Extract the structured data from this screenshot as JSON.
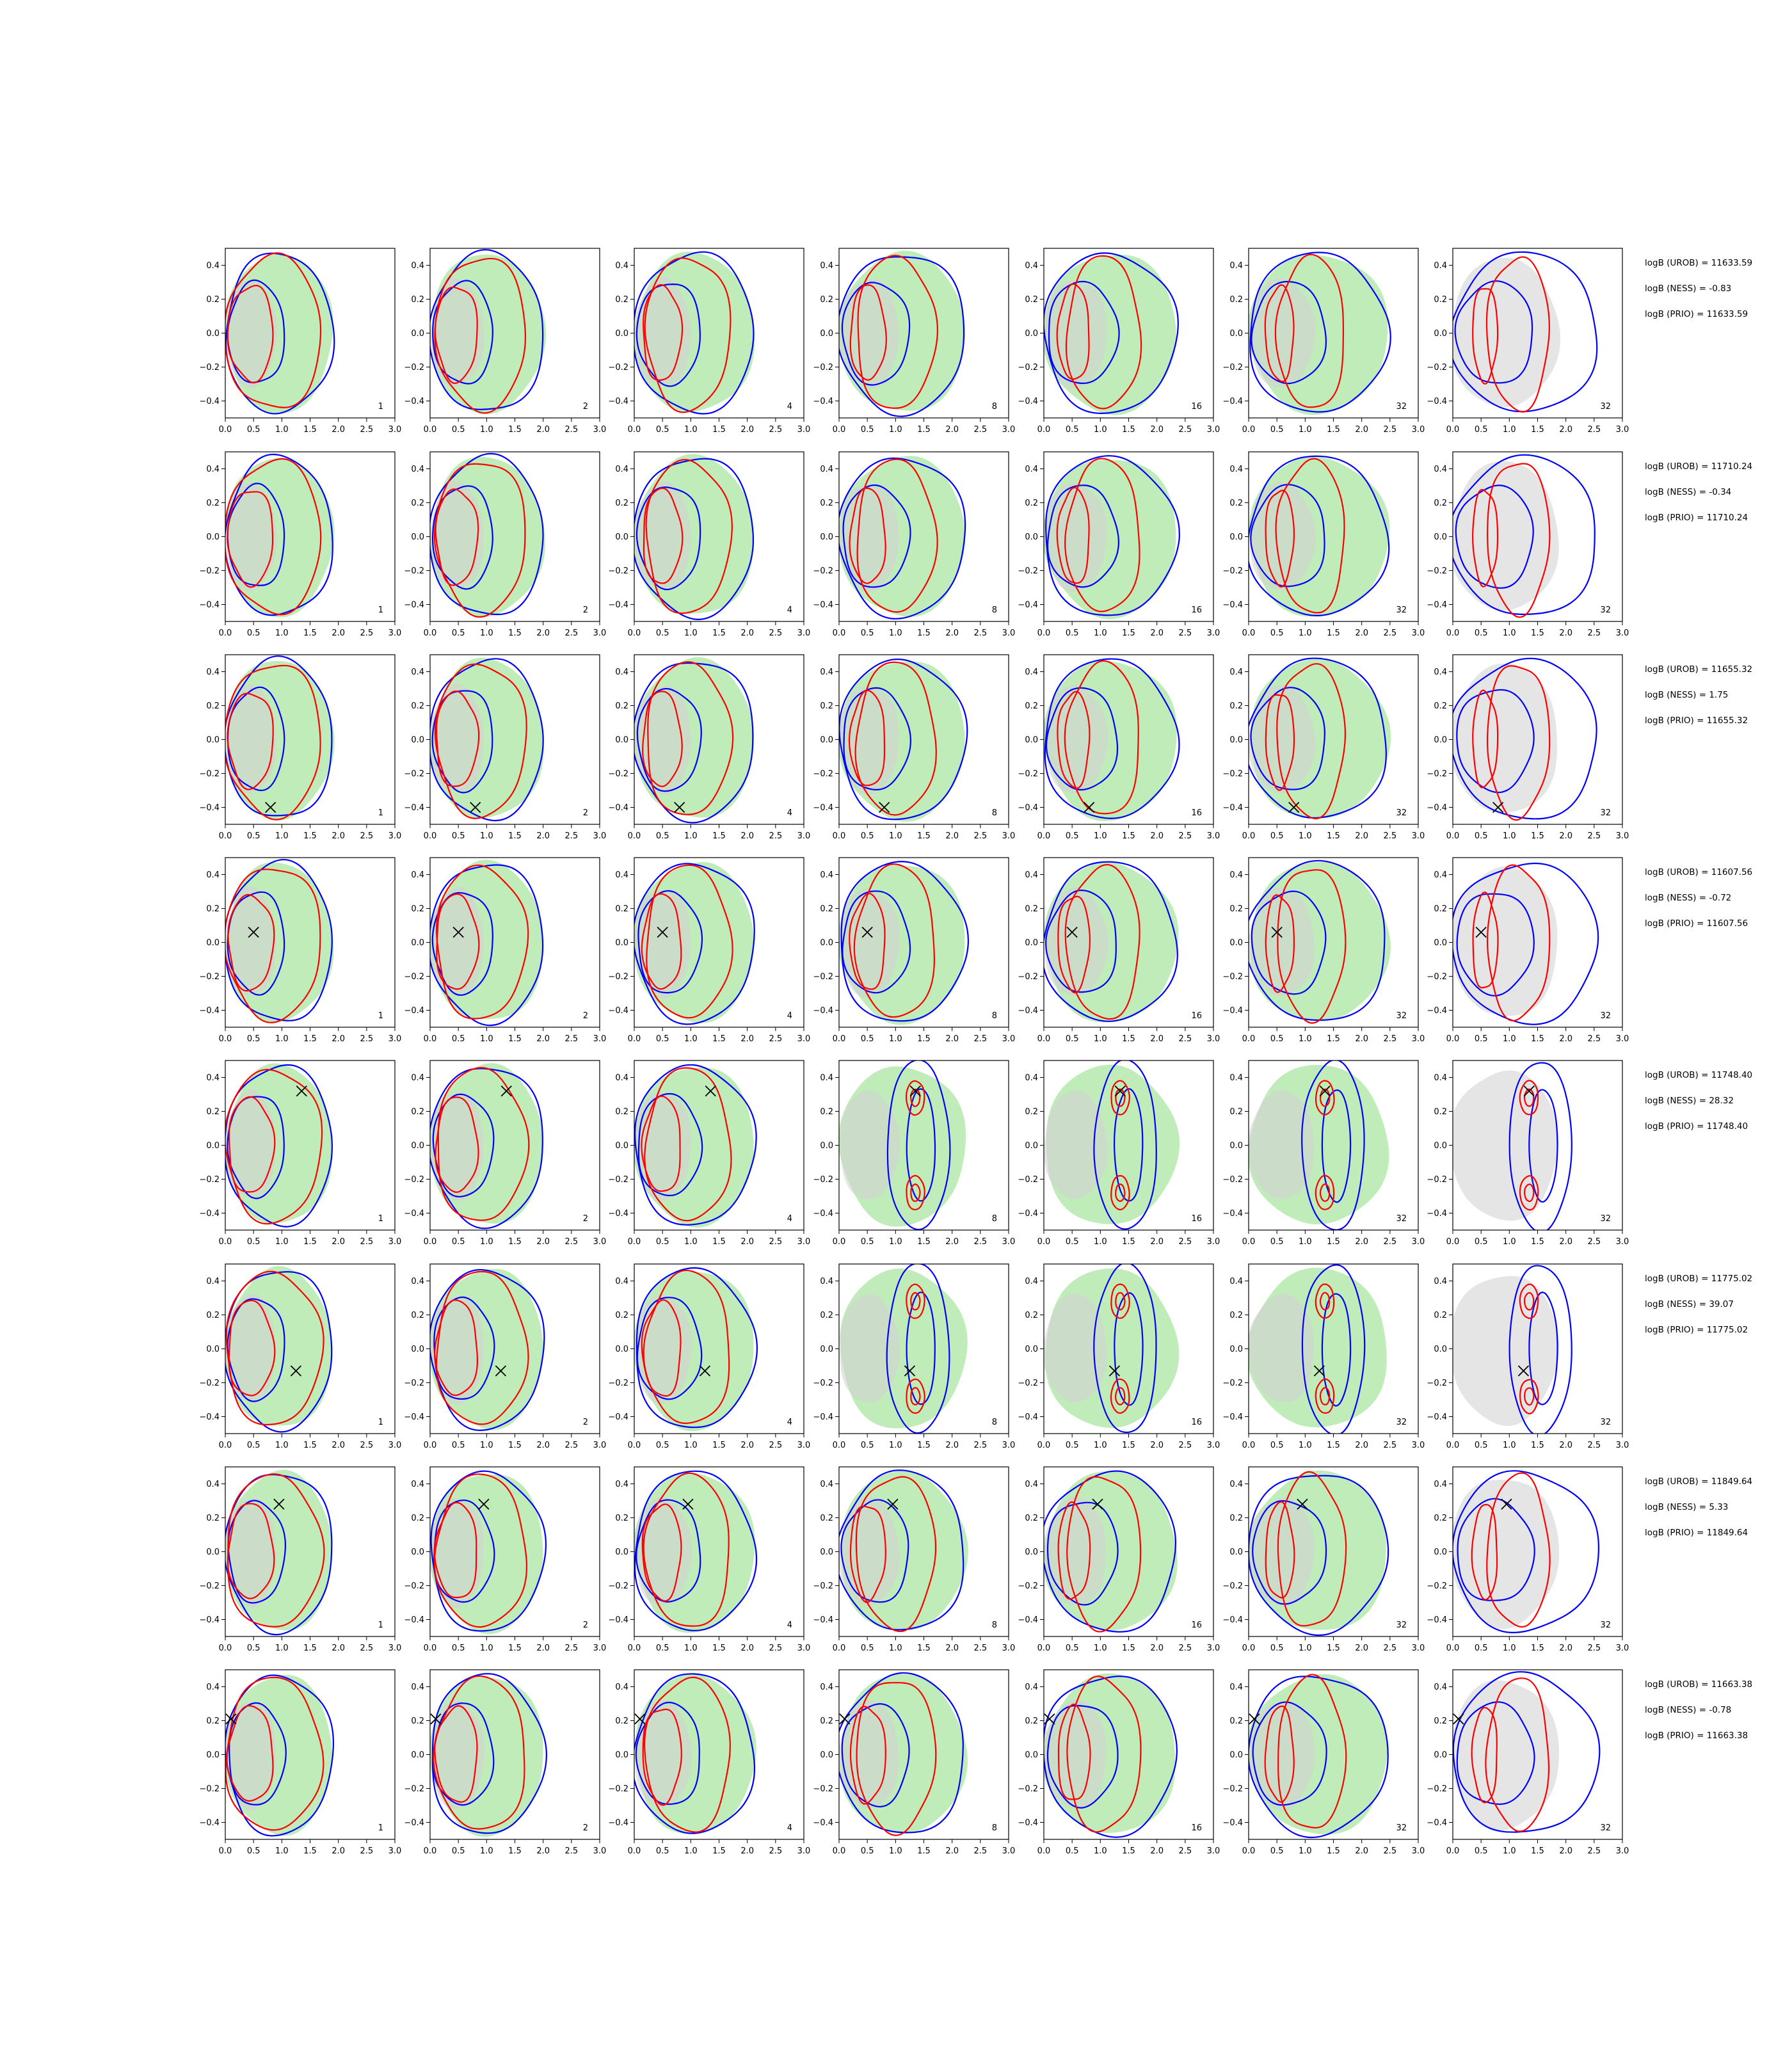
{
  "figure": {
    "panel_labels": [
      "1",
      "2",
      "4",
      "8",
      "16",
      "32",
      "32"
    ],
    "x_ticks": [
      "0.0",
      "0.5",
      "1.0",
      "1.5",
      "2.0",
      "2.5",
      "3.0"
    ],
    "y_ticks": [
      "0.4",
      "0.2",
      "0.0",
      "−0.2",
      "−0.4"
    ]
  },
  "chart_data": {
    "type": "contour-grid",
    "rows": 8,
    "columns": 7,
    "xlim": [
      0,
      3
    ],
    "ylim": [
      -0.5,
      0.5
    ],
    "colors": {
      "shaded_green": "#a9e5a0",
      "shaded_grey": "#d3d3d3",
      "blue": "#0000ff",
      "red": "#ff0000",
      "marker": "#000000"
    },
    "panel_labels": [
      "1",
      "2",
      "4",
      "8",
      "16",
      "32",
      "32"
    ],
    "rows_data": [
      {
        "marker": null,
        "logB": [
          "logB (UROB) = 11633.59",
          "logB (NESS) = -0.83",
          "logB (PRIO) = 11633.59"
        ]
      },
      {
        "marker": null,
        "logB": [
          "logB (UROB) = 11710.24",
          "logB (NESS) = -0.34",
          "logB (PRIO) = 11710.24"
        ]
      },
      {
        "marker": [
          0.8,
          -0.4
        ],
        "logB": [
          "logB (UROB) = 11655.32",
          "logB (NESS) = 1.75",
          "logB (PRIO) = 11655.32"
        ]
      },
      {
        "marker": [
          0.5,
          0.06
        ],
        "logB": [
          "logB (UROB) = 11607.56",
          "logB (NESS) = -0.72",
          "logB (PRIO) = 11607.56"
        ]
      },
      {
        "marker": [
          1.35,
          0.32
        ],
        "logB": [
          "logB (UROB) = 11748.40",
          "logB (NESS) = 28.32",
          "logB (PRIO) = 11748.40"
        ]
      },
      {
        "marker": [
          1.25,
          -0.13
        ],
        "logB": [
          "logB (UROB) = 11775.02",
          "logB (NESS) = 39.07",
          "logB (PRIO) = 11775.02"
        ]
      },
      {
        "marker": [
          0.95,
          0.28
        ],
        "logB": [
          "logB (UROB) = 11849.64",
          "logB (NESS) = 5.33",
          "logB (PRIO) = 11849.64"
        ]
      },
      {
        "marker": [
          0.1,
          0.21
        ],
        "logB": [
          "logB (UROB) = 11663.38",
          "logB (NESS) = -0.78",
          "logB (PRIO) = 11663.38"
        ]
      }
    ]
  }
}
